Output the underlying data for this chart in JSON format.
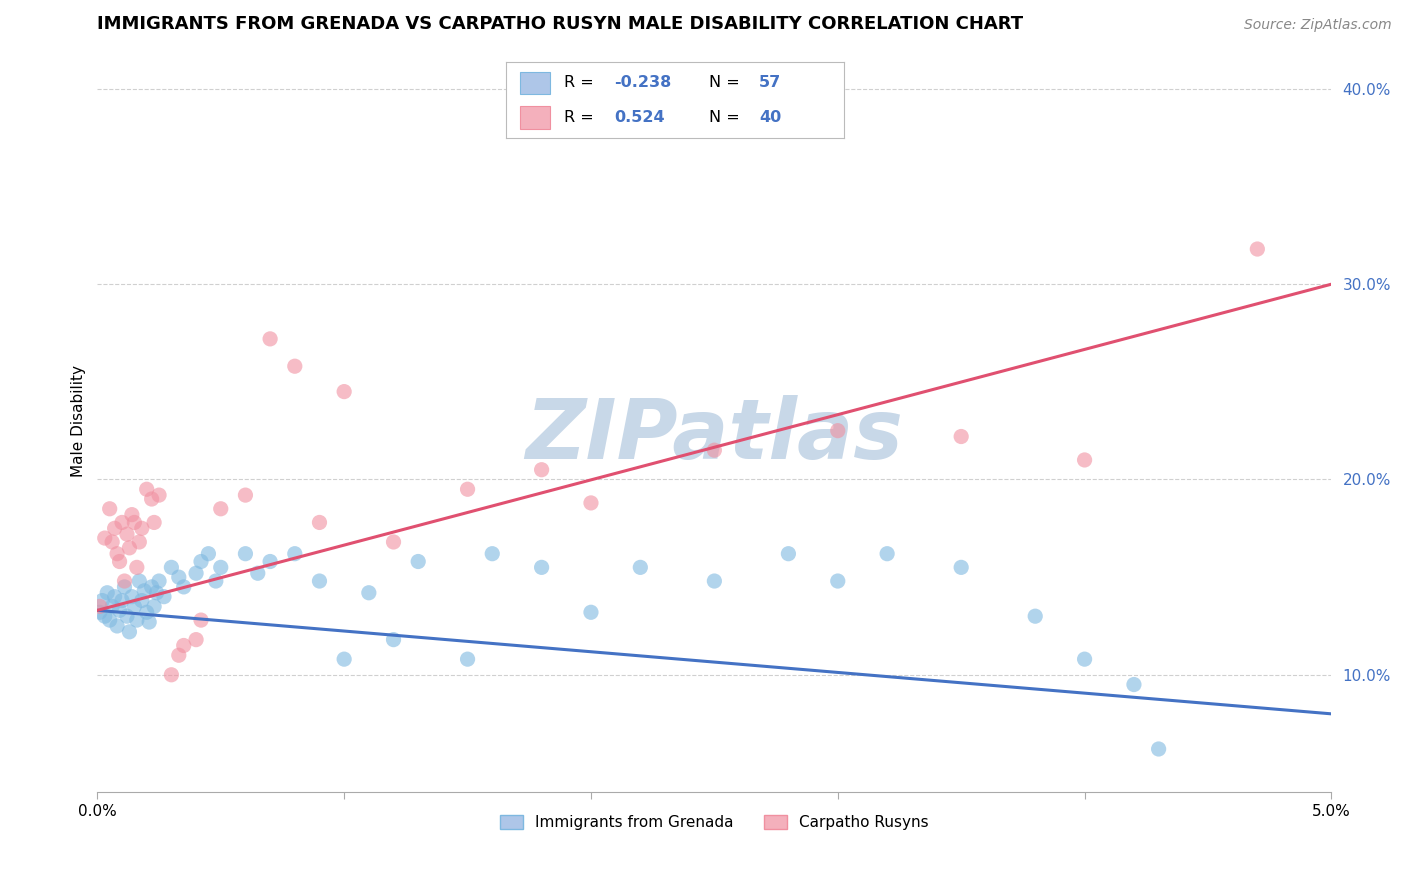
{
  "title": "IMMIGRANTS FROM GRENADA VS CARPATHO RUSYN MALE DISABILITY CORRELATION CHART",
  "source": "Source: ZipAtlas.com",
  "ylabel": "Male Disability",
  "xlim": [
    0.0,
    0.05
  ],
  "ylim": [
    0.04,
    0.42
  ],
  "watermark": "ZIPatlas",
  "blue_scatter": [
    [
      0.0001,
      0.132
    ],
    [
      0.0002,
      0.138
    ],
    [
      0.0003,
      0.13
    ],
    [
      0.0004,
      0.142
    ],
    [
      0.0005,
      0.128
    ],
    [
      0.0006,
      0.135
    ],
    [
      0.0007,
      0.14
    ],
    [
      0.0008,
      0.125
    ],
    [
      0.0009,
      0.133
    ],
    [
      0.001,
      0.138
    ],
    [
      0.0011,
      0.145
    ],
    [
      0.0012,
      0.13
    ],
    [
      0.0013,
      0.122
    ],
    [
      0.0014,
      0.14
    ],
    [
      0.0015,
      0.135
    ],
    [
      0.0016,
      0.128
    ],
    [
      0.0017,
      0.148
    ],
    [
      0.0018,
      0.138
    ],
    [
      0.0019,
      0.143
    ],
    [
      0.002,
      0.132
    ],
    [
      0.0021,
      0.127
    ],
    [
      0.0022,
      0.145
    ],
    [
      0.0023,
      0.135
    ],
    [
      0.0024,
      0.142
    ],
    [
      0.0025,
      0.148
    ],
    [
      0.0027,
      0.14
    ],
    [
      0.003,
      0.155
    ],
    [
      0.0033,
      0.15
    ],
    [
      0.0035,
      0.145
    ],
    [
      0.004,
      0.152
    ],
    [
      0.0042,
      0.158
    ],
    [
      0.0045,
      0.162
    ],
    [
      0.0048,
      0.148
    ],
    [
      0.005,
      0.155
    ],
    [
      0.006,
      0.162
    ],
    [
      0.0065,
      0.152
    ],
    [
      0.007,
      0.158
    ],
    [
      0.008,
      0.162
    ],
    [
      0.009,
      0.148
    ],
    [
      0.01,
      0.108
    ],
    [
      0.011,
      0.142
    ],
    [
      0.012,
      0.118
    ],
    [
      0.013,
      0.158
    ],
    [
      0.015,
      0.108
    ],
    [
      0.016,
      0.162
    ],
    [
      0.018,
      0.155
    ],
    [
      0.02,
      0.132
    ],
    [
      0.022,
      0.155
    ],
    [
      0.025,
      0.148
    ],
    [
      0.028,
      0.162
    ],
    [
      0.03,
      0.148
    ],
    [
      0.032,
      0.162
    ],
    [
      0.035,
      0.155
    ],
    [
      0.038,
      0.13
    ],
    [
      0.04,
      0.108
    ],
    [
      0.042,
      0.095
    ],
    [
      0.043,
      0.062
    ]
  ],
  "pink_scatter": [
    [
      0.0001,
      0.135
    ],
    [
      0.0003,
      0.17
    ],
    [
      0.0005,
      0.185
    ],
    [
      0.0006,
      0.168
    ],
    [
      0.0007,
      0.175
    ],
    [
      0.0008,
      0.162
    ],
    [
      0.0009,
      0.158
    ],
    [
      0.001,
      0.178
    ],
    [
      0.0011,
      0.148
    ],
    [
      0.0012,
      0.172
    ],
    [
      0.0013,
      0.165
    ],
    [
      0.0014,
      0.182
    ],
    [
      0.0015,
      0.178
    ],
    [
      0.0016,
      0.155
    ],
    [
      0.0017,
      0.168
    ],
    [
      0.0018,
      0.175
    ],
    [
      0.002,
      0.195
    ],
    [
      0.0022,
      0.19
    ],
    [
      0.0023,
      0.178
    ],
    [
      0.0025,
      0.192
    ],
    [
      0.003,
      0.1
    ],
    [
      0.0033,
      0.11
    ],
    [
      0.0035,
      0.115
    ],
    [
      0.004,
      0.118
    ],
    [
      0.0042,
      0.128
    ],
    [
      0.005,
      0.185
    ],
    [
      0.006,
      0.192
    ],
    [
      0.007,
      0.272
    ],
    [
      0.008,
      0.258
    ],
    [
      0.009,
      0.178
    ],
    [
      0.01,
      0.245
    ],
    [
      0.012,
      0.168
    ],
    [
      0.015,
      0.195
    ],
    [
      0.018,
      0.205
    ],
    [
      0.02,
      0.188
    ],
    [
      0.025,
      0.215
    ],
    [
      0.03,
      0.225
    ],
    [
      0.035,
      0.222
    ],
    [
      0.04,
      0.21
    ],
    [
      0.047,
      0.318
    ]
  ],
  "blue_line": [
    [
      0.0,
      0.133
    ],
    [
      0.05,
      0.08
    ]
  ],
  "pink_line": [
    [
      0.0,
      0.133
    ],
    [
      0.05,
      0.3
    ]
  ],
  "scatter_color_blue": "#7eb8e0",
  "scatter_color_pink": "#f090a0",
  "line_color_blue": "#4472c4",
  "line_color_pink": "#e05070",
  "background_color": "#ffffff",
  "grid_color": "#d0d0d0",
  "title_fontsize": 13,
  "axis_label_fontsize": 11,
  "tick_fontsize": 11,
  "source_fontsize": 10,
  "watermark_color": "#c8d8e8",
  "watermark_fontsize": 60,
  "legend_R1": "-0.238",
  "legend_N1": "57",
  "legend_R2": "0.524",
  "legend_N2": "40",
  "legend_patch_color1": "#aec6e8",
  "legend_patch_color2": "#f4b0bc",
  "legend_text_color": "#4472c4",
  "bottom_legend_label1": "Immigrants from Grenada",
  "bottom_legend_label2": "Carpatho Rusyns"
}
